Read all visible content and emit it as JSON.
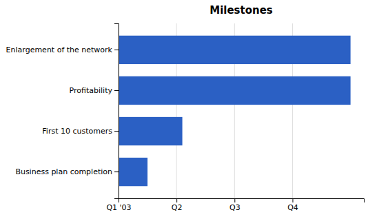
{
  "chart_data": {
    "type": "bar",
    "orientation": "horizontal",
    "title": "Milestones",
    "categories": [
      "Business plan completion",
      "First 10 customers",
      "Profitability",
      "Enlargement of the network"
    ],
    "values": [
      0.5,
      1.1,
      4.0,
      4.0
    ],
    "color": "#2B60C4",
    "xlim": [
      0,
      4.23
    ],
    "xticks": [
      {
        "value": 0,
        "label": "Q1 '03"
      },
      {
        "value": 1,
        "label": "Q2"
      },
      {
        "value": 2,
        "label": "Q3"
      },
      {
        "value": 3,
        "label": "Q4"
      }
    ],
    "grid": true
  }
}
